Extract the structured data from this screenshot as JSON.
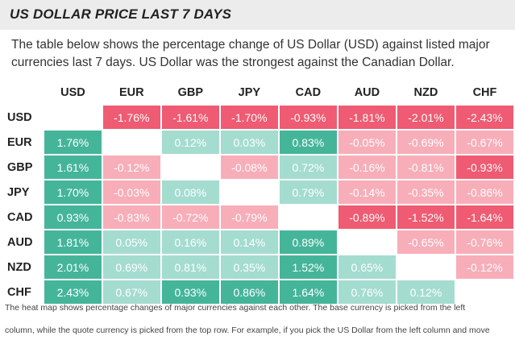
{
  "title": "US DOLLAR PRICE LAST 7 DAYS",
  "description": "The table below shows the percentage change of US Dollar (USD) against listed major currencies last 7 days. US Dollar was the strongest against the Canadian Dollar.",
  "footnote_line1": "The heat map shows percentage changes of major currencies against each other. The base currency is picked from the left",
  "footnote_line2": "column, while the quote currency is picked from the top row. For example, if you pick the US Dollar from the left column and move",
  "colors": {
    "strong_positive": "#45b59a",
    "light_positive": "#a4dcd0",
    "strong_negative": "#ef5b72",
    "light_negative": "#f7aeb9"
  },
  "chart_data": {
    "type": "heatmap",
    "columns": [
      "USD",
      "EUR",
      "GBP",
      "JPY",
      "CAD",
      "AUD",
      "NZD",
      "CHF"
    ],
    "rows": [
      "USD",
      "EUR",
      "GBP",
      "JPY",
      "CAD",
      "AUD",
      "NZD",
      "CHF"
    ],
    "unit": "%",
    "values": [
      [
        null,
        -1.76,
        -1.61,
        -1.7,
        -0.93,
        -1.81,
        -2.01,
        -2.43
      ],
      [
        1.76,
        null,
        0.12,
        0.03,
        0.83,
        -0.05,
        -0.69,
        -0.67
      ],
      [
        1.61,
        -0.12,
        null,
        -0.08,
        0.72,
        -0.16,
        -0.81,
        -0.93
      ],
      [
        1.7,
        -0.03,
        0.08,
        null,
        0.79,
        -0.14,
        -0.35,
        -0.86
      ],
      [
        0.93,
        -0.83,
        -0.72,
        -0.79,
        null,
        -0.89,
        -1.52,
        -1.64
      ],
      [
        1.81,
        0.05,
        0.16,
        0.14,
        0.89,
        null,
        -0.65,
        -0.76
      ],
      [
        2.01,
        0.69,
        0.81,
        0.35,
        1.52,
        0.65,
        null,
        -0.12
      ],
      [
        2.43,
        0.67,
        0.93,
        0.86,
        1.64,
        0.76,
        0.12,
        null
      ]
    ]
  }
}
